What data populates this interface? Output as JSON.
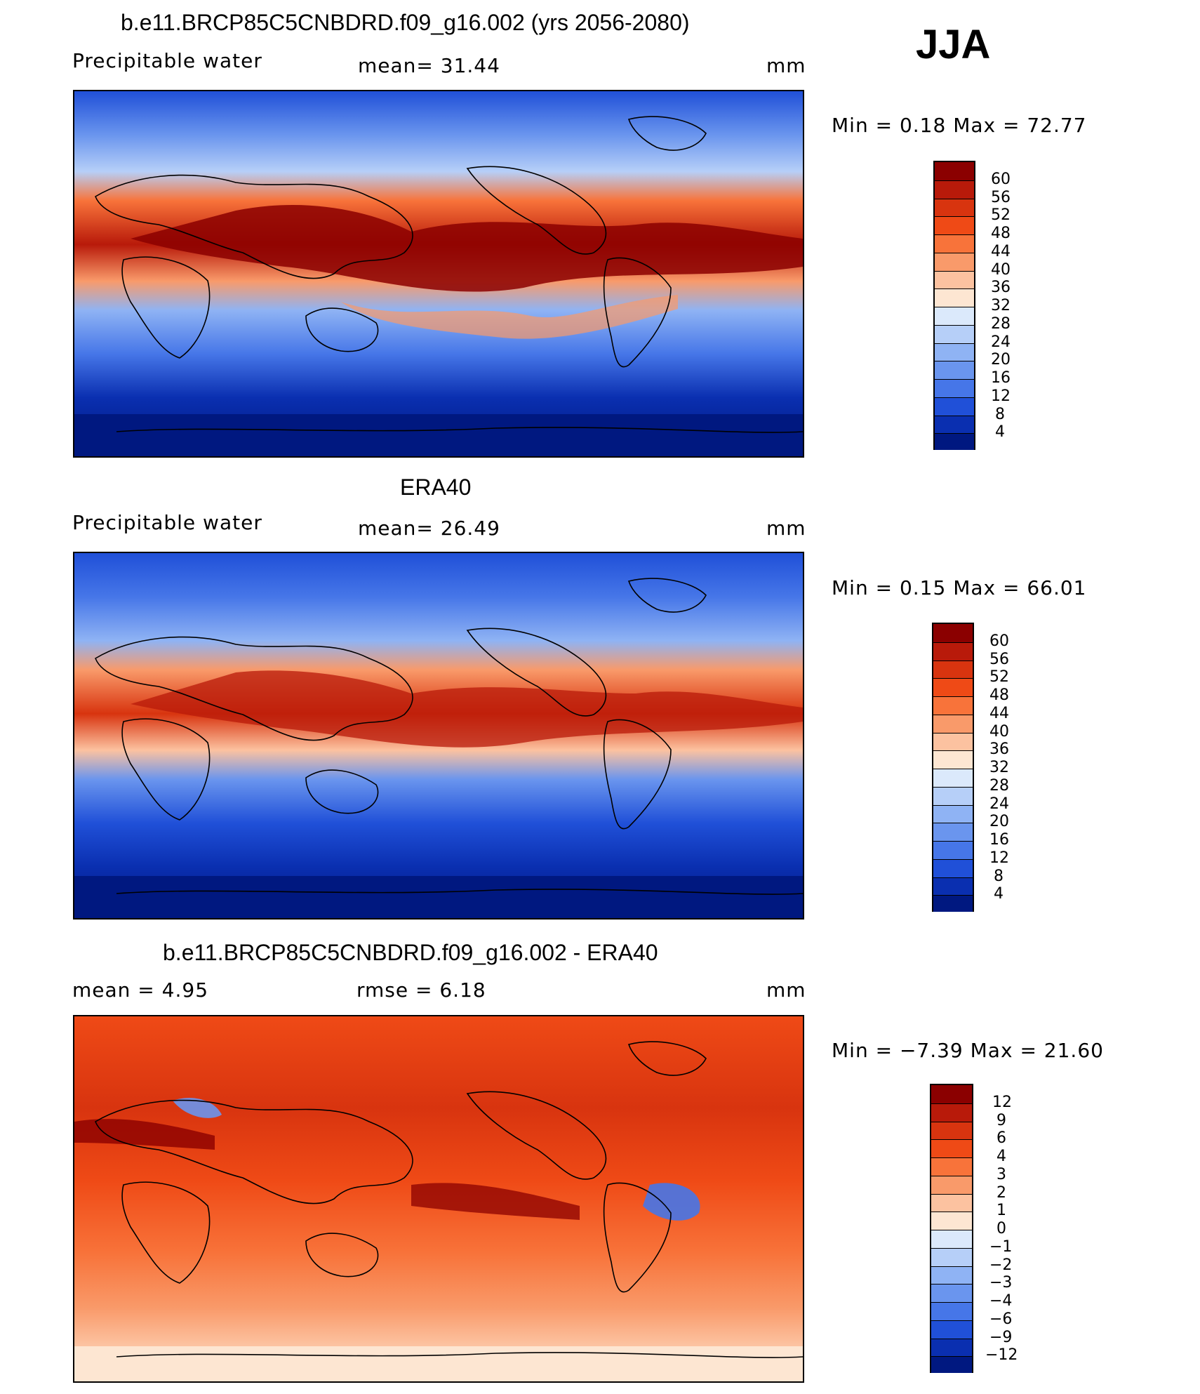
{
  "season": "JJA",
  "panels": [
    {
      "id": "model",
      "title": "b.e11.BRCP85C5CNBDRD.f09_g16.002 (yrs 2056-2080)",
      "left_label": "Precipitable water",
      "center_label": "mean=   31.44",
      "units": "mm",
      "minmax": "Min =    0.18  Max =   72.77",
      "colorbar": {
        "labels": [
          "60",
          "56",
          "52",
          "48",
          "44",
          "40",
          "36",
          "32",
          "28",
          "24",
          "20",
          "16",
          "12",
          "8",
          "4"
        ],
        "colors": [
          "#8b0000",
          "#b81a0a",
          "#d8340f",
          "#ef4a16",
          "#f8733a",
          "#f99a6a",
          "#fcc2a0",
          "#fde6d2",
          "#dbe9fb",
          "#b6cff8",
          "#8fb3f4",
          "#6a95ee",
          "#4676e8",
          "#2050d8",
          "#0a2fb0",
          "#001880"
        ]
      }
    },
    {
      "id": "obs",
      "title": "ERA40",
      "left_label": "Precipitable water",
      "center_label": "mean=   26.49",
      "units": "mm",
      "minmax": "Min =    0.15  Max =   66.01",
      "colorbar": {
        "labels": [
          "60",
          "56",
          "52",
          "48",
          "44",
          "40",
          "36",
          "32",
          "28",
          "24",
          "20",
          "16",
          "12",
          "8",
          "4"
        ],
        "colors": [
          "#8b0000",
          "#b81a0a",
          "#d8340f",
          "#ef4a16",
          "#f8733a",
          "#f99a6a",
          "#fcc2a0",
          "#fde6d2",
          "#dbe9fb",
          "#b6cff8",
          "#8fb3f4",
          "#6a95ee",
          "#4676e8",
          "#2050d8",
          "#0a2fb0",
          "#001880"
        ]
      }
    },
    {
      "id": "diff",
      "title": "b.e11.BRCP85C5CNBDRD.f09_g16.002 - ERA40",
      "left_label": "mean =     4.95",
      "center_label": "rmse =     6.18",
      "units": "mm",
      "minmax": "Min =  −7.39  Max =   21.60",
      "colorbar": {
        "labels": [
          "12",
          "9",
          "6",
          "4",
          "3",
          "2",
          "1",
          "0",
          "−1",
          "−2",
          "−3",
          "−4",
          "−6",
          "−9",
          "−12"
        ],
        "colors": [
          "#8b0000",
          "#b81a0a",
          "#d8340f",
          "#ef4a16",
          "#f8733a",
          "#f99a6a",
          "#fcc2a0",
          "#fde6d2",
          "#dbe9fb",
          "#b6cff8",
          "#8fb3f4",
          "#6a95ee",
          "#4676e8",
          "#2050d8",
          "#0a2fb0",
          "#001880"
        ]
      }
    }
  ]
}
